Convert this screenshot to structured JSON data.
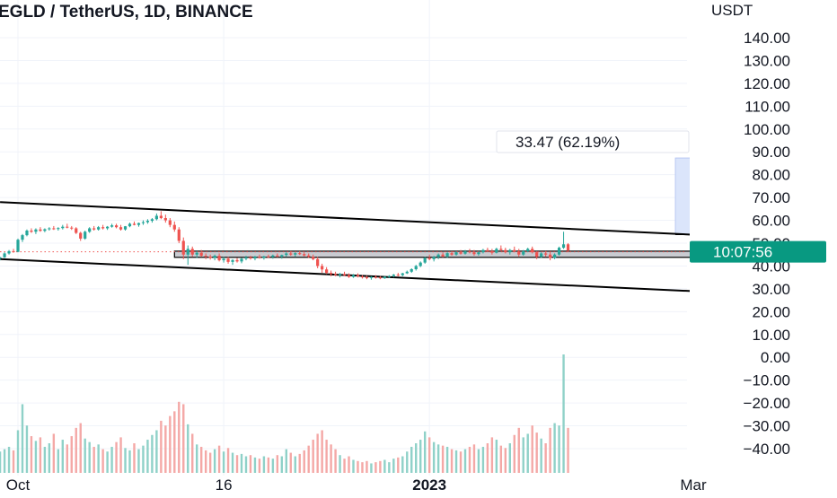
{
  "chart_data": {
    "type": "candlestick",
    "title": "EGLD / TetherUS, 1D, BINANCE",
    "unit_label": "USDT",
    "y_ticks": [
      "140.00",
      "130.00",
      "120.00",
      "110.00",
      "100.00",
      "90.00",
      "80.00",
      "70.00",
      "60.00",
      "50.00",
      "40.00",
      "30.00",
      "20.00",
      "10.00",
      "0.00",
      "−10.00",
      "−20.00",
      "−30.00",
      "−40.00"
    ],
    "y_tick_values": [
      140,
      130,
      120,
      110,
      100,
      90,
      80,
      70,
      60,
      50,
      40,
      30,
      20,
      10,
      0,
      -10,
      -20,
      -30,
      -40
    ],
    "ylim": [
      -44,
      148
    ],
    "x_ticks": [
      {
        "label": "Oct",
        "day": 0,
        "bold": false
      },
      {
        "label": "16",
        "day": 46,
        "bold": false
      },
      {
        "label": "2023",
        "day": 92,
        "bold": true
      },
      {
        "label": "Mar",
        "day": 151,
        "bold": false
      }
    ],
    "xlim": [
      -4,
      175
    ],
    "last_price": {
      "label": "10:07:56",
      "value": 46.2,
      "color": "#089981"
    },
    "measure": {
      "label": "33.47 (62.19%)",
      "from": 53.8,
      "to": 87.3,
      "day_start": 147,
      "day_end": 171
    },
    "resistance_zone": {
      "low": 43.8,
      "high": 46.5,
      "day_start": 35,
      "day_end": 153
    },
    "channel_upper": {
      "day_start": -4,
      "value_start": 68,
      "day_end": 175,
      "value_end": 51.5
    },
    "channel_lower": {
      "day_start": -4,
      "value_start": 43,
      "day_end": 175,
      "value_end": 26.8
    },
    "volume": {
      "max": 100,
      "baseline_value": -44,
      "max_value": 2
    },
    "up_color": "#26a69a",
    "down_color": "#ef5350",
    "up_volume_color": "#8fd1c8",
    "down_volume_color": "#f4a8a6",
    "measure_fill": "#dbe5fb",
    "candles": [
      [
        -4,
        43.5,
        44,
        42.5,
        43.8,
        18
      ],
      [
        -3,
        43.8,
        46,
        43.5,
        45.5,
        20
      ],
      [
        -2,
        45.5,
        47,
        45,
        46.5,
        22
      ],
      [
        -1,
        46.5,
        47.5,
        45.8,
        46.2,
        19
      ],
      [
        0,
        46.2,
        52,
        46,
        51.5,
        36
      ],
      [
        1,
        51.5,
        54,
        50.5,
        53.5,
        58
      ],
      [
        2,
        53.5,
        56,
        53,
        55.5,
        40
      ],
      [
        3,
        55.5,
        56.5,
        54.5,
        55,
        31
      ],
      [
        4,
        55,
        56.5,
        54,
        56,
        27
      ],
      [
        5,
        56,
        57,
        55,
        55.4,
        30
      ],
      [
        6,
        55.4,
        56.5,
        54.8,
        56.1,
        22
      ],
      [
        7,
        56.1,
        57,
        55.5,
        56.5,
        25
      ],
      [
        8,
        56.5,
        57.5,
        55.8,
        56.2,
        33
      ],
      [
        9,
        56.2,
        57,
        55.5,
        56.6,
        20
      ],
      [
        10,
        56.6,
        58,
        56,
        57.2,
        28
      ],
      [
        11,
        57.2,
        58.5,
        56.5,
        56.8,
        24
      ],
      [
        12,
        56.8,
        57.5,
        55.8,
        56.5,
        31
      ],
      [
        13,
        56.5,
        57,
        54,
        54.5,
        38
      ],
      [
        14,
        54.5,
        55,
        51,
        52,
        42
      ],
      [
        15,
        52,
        55.5,
        51.5,
        55,
        29
      ],
      [
        16,
        55,
        57,
        54.5,
        56.5,
        26
      ],
      [
        17,
        56.5,
        57.5,
        55.5,
        56,
        22
      ],
      [
        18,
        56,
        57.5,
        55.5,
        57,
        24
      ],
      [
        19,
        57,
        58,
        56,
        56.5,
        20
      ],
      [
        20,
        56.5,
        57.5,
        55.8,
        57.2,
        18
      ],
      [
        21,
        57.2,
        58.5,
        56.8,
        57.8,
        22
      ],
      [
        22,
        57.8,
        58.5,
        56.5,
        57,
        26
      ],
      [
        23,
        57,
        58,
        55.5,
        56,
        30
      ],
      [
        24,
        56,
        57.5,
        55.5,
        57.4,
        21
      ],
      [
        25,
        57.4,
        59,
        57,
        58.5,
        19
      ],
      [
        26,
        58.5,
        59.5,
        57.8,
        58,
        25
      ],
      [
        27,
        58,
        59,
        57.2,
        58.8,
        20
      ],
      [
        28,
        58.8,
        60,
        58,
        59.2,
        23
      ],
      [
        29,
        59.2,
        60.5,
        58.5,
        59.8,
        28
      ],
      [
        30,
        59.8,
        61,
        59,
        60.5,
        32
      ],
      [
        31,
        60.5,
        63,
        60,
        62,
        36
      ],
      [
        32,
        62,
        64,
        60.5,
        61,
        44
      ],
      [
        33,
        61,
        62.5,
        59,
        60,
        40
      ],
      [
        34,
        60,
        61,
        57,
        58,
        48
      ],
      [
        35,
        58,
        59.5,
        55,
        56,
        52
      ],
      [
        36,
        56,
        57,
        50,
        51,
        60
      ],
      [
        37,
        51,
        52.5,
        43,
        45,
        58
      ],
      [
        38,
        45,
        49,
        40.5,
        47.5,
        41
      ],
      [
        39,
        47.5,
        48.5,
        44,
        45,
        33
      ],
      [
        40,
        45,
        46.5,
        43.5,
        45.8,
        24
      ],
      [
        41,
        45.8,
        47,
        44,
        44.5,
        22
      ],
      [
        42,
        44.5,
        45.5,
        43,
        44.1,
        19
      ],
      [
        43,
        44.1,
        45,
        42.8,
        43.5,
        17
      ],
      [
        44,
        43.5,
        45,
        42.5,
        44.5,
        20
      ],
      [
        45,
        44.5,
        45.5,
        42,
        42.5,
        23
      ],
      [
        46,
        42.5,
        44,
        41.5,
        43.2,
        18
      ],
      [
        47,
        43.2,
        44,
        41,
        41.8,
        21
      ],
      [
        48,
        41.8,
        43,
        40.5,
        42.6,
        17
      ],
      [
        49,
        42.6,
        43.5,
        41.5,
        42,
        15
      ],
      [
        50,
        42,
        43.5,
        41.2,
        43.2,
        16
      ],
      [
        51,
        43.2,
        44.5,
        42.5,
        43.8,
        14
      ],
      [
        52,
        43.8,
        44.5,
        42.8,
        43.3,
        15
      ],
      [
        53,
        43.3,
        44.5,
        42.5,
        44,
        13
      ],
      [
        54,
        44,
        45,
        43.2,
        43.6,
        12
      ],
      [
        55,
        43.6,
        44.5,
        42.8,
        44.2,
        14
      ],
      [
        56,
        44.2,
        45,
        43.5,
        44,
        13
      ],
      [
        57,
        44,
        45,
        43.2,
        44.6,
        12
      ],
      [
        58,
        44.6,
        45.5,
        43.8,
        44.2,
        15
      ],
      [
        59,
        44.2,
        45,
        43.2,
        44.8,
        14
      ],
      [
        60,
        44.8,
        46,
        44,
        45.5,
        20
      ],
      [
        61,
        45.5,
        46.5,
        44.5,
        45,
        17
      ],
      [
        62,
        45,
        46,
        44,
        45.6,
        14
      ],
      [
        63,
        45.6,
        46.5,
        44.8,
        45.2,
        16
      ],
      [
        64,
        45.2,
        46,
        44.2,
        44.6,
        19
      ],
      [
        65,
        44.6,
        45.5,
        43.5,
        44,
        23
      ],
      [
        66,
        44,
        45,
        42.5,
        43,
        28
      ],
      [
        67,
        43,
        44,
        39,
        40,
        33
      ],
      [
        68,
        40,
        41,
        37,
        38.5,
        36
      ],
      [
        69,
        38.5,
        39.5,
        36.5,
        37,
        28
      ],
      [
        70,
        37,
        38,
        35.5,
        36.5,
        24
      ],
      [
        71,
        36.5,
        37.5,
        35.5,
        36,
        20
      ],
      [
        72,
        36,
        37,
        35,
        36.5,
        15
      ],
      [
        73,
        36.5,
        37.5,
        35.5,
        36,
        12
      ],
      [
        74,
        36,
        36.8,
        34.8,
        35.2,
        14
      ],
      [
        75,
        35.2,
        36.5,
        34.8,
        36,
        11
      ],
      [
        76,
        36,
        36.8,
        35,
        35.4,
        10
      ],
      [
        77,
        35.4,
        36,
        34.5,
        35.1,
        9
      ],
      [
        78,
        35.1,
        35.8,
        34.2,
        34.8,
        10
      ],
      [
        79,
        34.8,
        35.5,
        34,
        35.2,
        8
      ],
      [
        80,
        35.2,
        36,
        34.5,
        35,
        9
      ],
      [
        81,
        35,
        35.6,
        34.2,
        34.6,
        10
      ],
      [
        82,
        34.6,
        35.5,
        34.4,
        35.3,
        11
      ],
      [
        83,
        35.3,
        36,
        34.8,
        35.6,
        9
      ],
      [
        84,
        35.6,
        36.5,
        35,
        36.2,
        12
      ],
      [
        85,
        36.2,
        37,
        35.5,
        36,
        13
      ],
      [
        86,
        36,
        37,
        35.5,
        36.8,
        14
      ],
      [
        87,
        36.8,
        38,
        36.5,
        37.5,
        18
      ],
      [
        88,
        37.5,
        39,
        37,
        38.6,
        22
      ],
      [
        89,
        38.6,
        40.5,
        38,
        40,
        25
      ],
      [
        90,
        40,
        42,
        39.5,
        41.5,
        28
      ],
      [
        91,
        41.5,
        44,
        41,
        43.5,
        35
      ],
      [
        92,
        43.5,
        45,
        42.5,
        43,
        30
      ],
      [
        93,
        43,
        44.5,
        42,
        44,
        26
      ],
      [
        94,
        44,
        45.5,
        43,
        45,
        24
      ],
      [
        95,
        45,
        46,
        43.8,
        44.2,
        23
      ],
      [
        96,
        44.2,
        46,
        43.5,
        45.6,
        22
      ],
      [
        97,
        45.6,
        46.5,
        44.5,
        45,
        20
      ],
      [
        98,
        45,
        46.5,
        44.5,
        46,
        19
      ],
      [
        99,
        46,
        47,
        45,
        45.4,
        18
      ],
      [
        100,
        45.4,
        47,
        45,
        46.4,
        20
      ],
      [
        101,
        46.4,
        47.5,
        45.5,
        46,
        22
      ],
      [
        102,
        46,
        47,
        44.5,
        45.2,
        24
      ],
      [
        103,
        45.2,
        46.5,
        44.5,
        46,
        20
      ],
      [
        104,
        46,
        47.5,
        45.5,
        47,
        22
      ],
      [
        105,
        47,
        48,
        46,
        46.5,
        25
      ],
      [
        106,
        46.5,
        47.5,
        45,
        45.8,
        30
      ],
      [
        107,
        45.8,
        48,
        45.5,
        47.5,
        28
      ],
      [
        108,
        47.5,
        49,
        46.5,
        47,
        23
      ],
      [
        109,
        47,
        48,
        45.5,
        46,
        21
      ],
      [
        110,
        46,
        47.5,
        45,
        47,
        25
      ],
      [
        111,
        47,
        48.5,
        46,
        46.4,
        32
      ],
      [
        112,
        46.4,
        47.5,
        44,
        45,
        38
      ],
      [
        113,
        45,
        47,
        44.5,
        46.5,
        30
      ],
      [
        114,
        46.5,
        48,
        46,
        47.5,
        33
      ],
      [
        115,
        47.5,
        48.5,
        45.5,
        46,
        40
      ],
      [
        116,
        46,
        46.5,
        43,
        44,
        34
      ],
      [
        117,
        44,
        46,
        43.5,
        45.5,
        29
      ],
      [
        118,
        45.5,
        46.5,
        44,
        45,
        25
      ],
      [
        119,
        45,
        46,
        42.5,
        43.5,
        38
      ],
      [
        120,
        43.5,
        45.5,
        43,
        45,
        42
      ],
      [
        121,
        45,
        48.5,
        44.5,
        48,
        40
      ],
      [
        122,
        48,
        55,
        47.5,
        49.5,
        100
      ],
      [
        123,
        49.5,
        50,
        46,
        46.8,
        38
      ]
    ]
  }
}
